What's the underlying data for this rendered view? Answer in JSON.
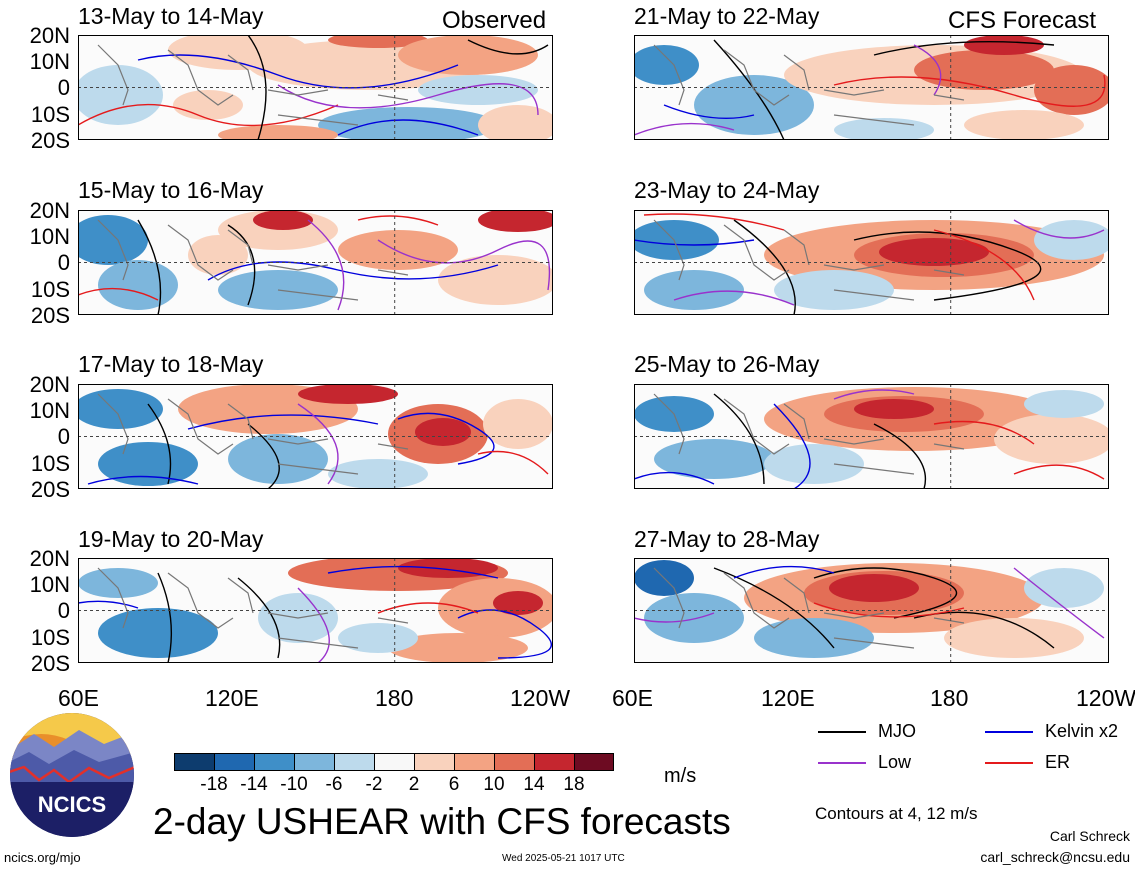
{
  "header": {
    "observed_label": "Observed",
    "forecast_label": "CFS Forecast"
  },
  "observed_panels": [
    {
      "title": "13-May to 14-May"
    },
    {
      "title": "15-May to 16-May"
    },
    {
      "title": "17-May to 18-May"
    },
    {
      "title": "19-May to 20-May"
    }
  ],
  "forecast_panels": [
    {
      "title": "21-May to 22-May"
    },
    {
      "title": "23-May to 24-May"
    },
    {
      "title": "25-May to 26-May"
    },
    {
      "title": "27-May to 28-May"
    }
  ],
  "lat_labels": [
    "20N",
    "10N",
    "0",
    "10S",
    "20S"
  ],
  "lon_labels": [
    "60E",
    "120E",
    "180",
    "120W"
  ],
  "colorbar": {
    "unit": "m/s",
    "ticks": [
      "-18",
      "-14",
      "-10",
      "-6",
      "-2",
      "2",
      "6",
      "10",
      "14",
      "18"
    ],
    "colors": [
      "#0d3c6e",
      "#1f68b0",
      "#3f8fc8",
      "#7db6dc",
      "#bddaec",
      "#f8f8f8",
      "#f9d2bd",
      "#f3a383",
      "#e36e56",
      "#c5262f",
      "#6d0b22"
    ]
  },
  "legend": [
    {
      "label": "MJO",
      "color": "#000000"
    },
    {
      "label": "Kelvin x2",
      "color": "#0000dd"
    },
    {
      "label": "Low",
      "color": "#9932cc"
    },
    {
      "label": "ER",
      "color": "#e41a1c"
    }
  ],
  "contours_note": "Contours at 4, 12 m/s",
  "main_title": "2-day USHEAR with CFS forecasts",
  "logo_text": "NCICS",
  "footer": {
    "url": "ncics.org/mjo",
    "timestamp": "Wed 2025-05-21 1017 UTC",
    "author": "Carl Schreck",
    "email": "carl_schreck@ncsu.edu"
  }
}
